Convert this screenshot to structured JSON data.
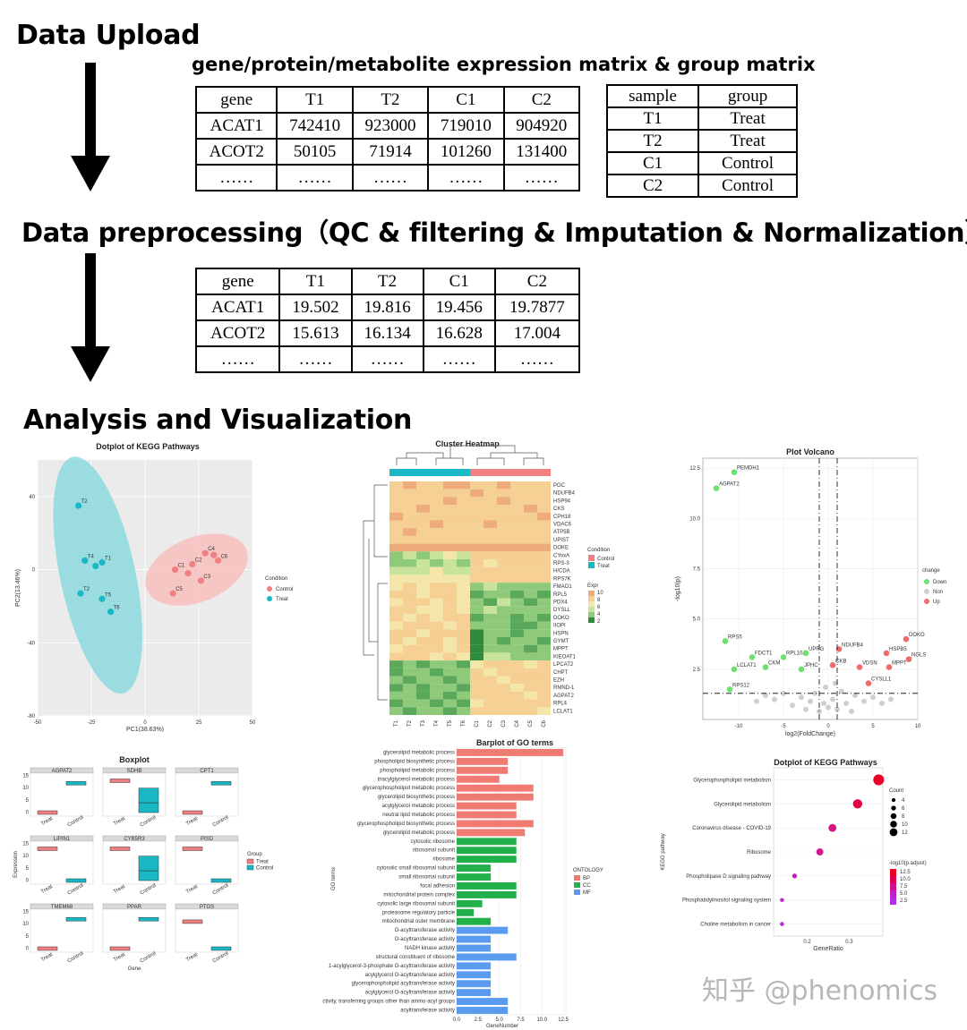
{
  "steps": {
    "upload": "Data Upload",
    "preprocessing": "Data preprocessing（QC & filtering & Imputation & Normalization）",
    "analysis": "Analysis and Visualization"
  },
  "upload_caption": "gene/protein/metabolite expression matrix & group matrix",
  "expression_matrix": {
    "header": [
      "gene",
      "T1",
      "T2",
      "C1",
      "C2"
    ],
    "rows": [
      [
        "ACAT1",
        "742410",
        "923000",
        "719010",
        "904920"
      ],
      [
        "ACOT2",
        "50105",
        "71914",
        "101260",
        "131400"
      ],
      [
        "……",
        "……",
        "……",
        "……",
        "……"
      ]
    ]
  },
  "group_matrix": {
    "header": [
      "sample",
      "group"
    ],
    "rows": [
      [
        "T1",
        "Treat"
      ],
      [
        "T2",
        "Treat"
      ],
      [
        "C1",
        "Control"
      ],
      [
        "C2",
        "Control"
      ]
    ]
  },
  "normalized_matrix": {
    "header": [
      "gene",
      "T1",
      "T2",
      "C1",
      "C2"
    ],
    "rows": [
      [
        "ACAT1",
        "19.502",
        "19.816",
        "19.456",
        "19.7877"
      ],
      [
        "ACOT2",
        "15.613",
        "16.134",
        "16.628",
        "17.004"
      ],
      [
        "……",
        "……",
        "……",
        "……",
        "……"
      ]
    ]
  },
  "chart_data": [
    {
      "type": "scatter",
      "title": "Dotplot of KEGG Pathways",
      "xlabel": "PC1(38.63%)",
      "ylabel": "PC2(13.46%)",
      "xlim": [
        -50,
        50
      ],
      "ylim": [
        -80,
        60
      ],
      "xticks": [
        "-50",
        "-25",
        "0",
        "25",
        "50"
      ],
      "yticks": [
        "40",
        "0",
        "-40",
        "-80"
      ],
      "legend_title": "Condition",
      "series": [
        {
          "name": "Control",
          "color": "#f08080",
          "points": [
            {
              "label": "C4",
              "x": 28,
              "y": 9
            },
            {
              "label": "C1",
              "x": 14,
              "y": 0
            },
            {
              "label": "C2",
              "x": 22,
              "y": 3
            },
            {
              "label": "C6",
              "x": 34,
              "y": 5
            },
            {
              "label": "C3",
              "x": 26,
              "y": -6
            },
            {
              "label": "C5",
              "x": 13,
              "y": -13
            },
            {
              "label": "",
              "x": 32,
              "y": 8
            },
            {
              "label": "",
              "x": 20,
              "y": -2
            }
          ]
        },
        {
          "name": "Treat",
          "color": "#1ab8c4",
          "points": [
            {
              "label": "T2",
              "x": -31,
              "y": 35
            },
            {
              "label": "T4",
              "x": -28,
              "y": 5
            },
            {
              "label": "T1",
              "x": -20,
              "y": 4
            },
            {
              "label": "T2",
              "x": -30,
              "y": -13
            },
            {
              "label": "T5",
              "x": -20,
              "y": -16
            },
            {
              "label": "T6",
              "x": -16,
              "y": -23
            },
            {
              "label": "",
              "x": -23,
              "y": 2
            }
          ]
        }
      ]
    },
    {
      "type": "heatmap",
      "title": "Cluster Heatmap",
      "columns": [
        "T1",
        "T2",
        "T3",
        "T4",
        "T5",
        "T6",
        "C1",
        "C2",
        "C3",
        "C4",
        "C5",
        "C6"
      ],
      "rows": [
        "PGC",
        "NDUFB4",
        "HSP94",
        "CKS",
        "CPH18",
        "VDAC6",
        "ATP5B",
        "UPIST",
        "DOKE",
        "CYoxA",
        "RPS-3",
        "H/CDA",
        "RPS7K",
        "FMAO1",
        "RPL5",
        "PDX4",
        "DYSLL",
        "DOKO",
        "IIOPI",
        "HSPN",
        "GYMT",
        "MPPT",
        "KIEOAT1",
        "LPCAT2",
        "CHPT",
        "EZH",
        "RMND-1",
        "AGPAT2",
        "RPL4",
        "LCLAT1"
      ],
      "values": [
        [
          6,
          7,
          6,
          6,
          7,
          7,
          6,
          6,
          7,
          6,
          6,
          6
        ],
        [
          6,
          6,
          6,
          6,
          6,
          6,
          7,
          6,
          6,
          6,
          6,
          6
        ],
        [
          6,
          6,
          6,
          6,
          7,
          6,
          6,
          6,
          7,
          6,
          6,
          6
        ],
        [
          6,
          6,
          7,
          6,
          6,
          6,
          6,
          6,
          6,
          6,
          7,
          6
        ],
        [
          7,
          6,
          6,
          6,
          6,
          6,
          6,
          6,
          6,
          6,
          6,
          7
        ],
        [
          6,
          6,
          6,
          7,
          6,
          6,
          6,
          7,
          6,
          6,
          6,
          6
        ],
        [
          6,
          7,
          6,
          6,
          6,
          6,
          6,
          6,
          6,
          6,
          6,
          6
        ],
        [
          6,
          6,
          6,
          6,
          6,
          6,
          6,
          6,
          6,
          6,
          6,
          6
        ],
        [
          7,
          7,
          7,
          7,
          7,
          7,
          7,
          7,
          7,
          7,
          7,
          7
        ],
        [
          3,
          4,
          3,
          4,
          5,
          4,
          6,
          6,
          6,
          6,
          6,
          6
        ],
        [
          3,
          3,
          4,
          3,
          4,
          3,
          6,
          5,
          6,
          6,
          6,
          6
        ],
        [
          4,
          4,
          4,
          5,
          4,
          4,
          6,
          6,
          6,
          6,
          6,
          6
        ],
        [
          5,
          5,
          5,
          5,
          5,
          5,
          6,
          6,
          6,
          6,
          6,
          6
        ],
        [
          5,
          6,
          5,
          6,
          6,
          5,
          3,
          4,
          3,
          3,
          3,
          3
        ],
        [
          6,
          6,
          5,
          6,
          6,
          5,
          2,
          3,
          3,
          2,
          3,
          2
        ],
        [
          5,
          6,
          6,
          5,
          6,
          5,
          3,
          2,
          4,
          3,
          2,
          3
        ],
        [
          6,
          6,
          5,
          5,
          6,
          5,
          3,
          4,
          3,
          3,
          3,
          3
        ],
        [
          6,
          5,
          6,
          5,
          6,
          6,
          2,
          3,
          3,
          2,
          3,
          2
        ],
        [
          5,
          6,
          6,
          6,
          5,
          6,
          3,
          3,
          3,
          2,
          2,
          3
        ],
        [
          6,
          6,
          5,
          6,
          6,
          6,
          1,
          3,
          3,
          2,
          3,
          3
        ],
        [
          6,
          5,
          6,
          6,
          5,
          6,
          1,
          3,
          2,
          3,
          3,
          2
        ],
        [
          5,
          6,
          6,
          6,
          5,
          6,
          1,
          3,
          3,
          3,
          2,
          3
        ],
        [
          6,
          6,
          6,
          5,
          6,
          5,
          1,
          4,
          4,
          3,
          3,
          3
        ],
        [
          2,
          3,
          2,
          3,
          3,
          2,
          5,
          6,
          6,
          6,
          5,
          6
        ],
        [
          2,
          3,
          3,
          2,
          3,
          3,
          6,
          5,
          6,
          6,
          6,
          6
        ],
        [
          3,
          2,
          3,
          3,
          2,
          3,
          6,
          6,
          5,
          6,
          6,
          6
        ],
        [
          2,
          3,
          2,
          3,
          3,
          2,
          6,
          6,
          6,
          5,
          6,
          6
        ],
        [
          3,
          3,
          2,
          3,
          2,
          3,
          6,
          6,
          6,
          6,
          5,
          6
        ],
        [
          2,
          3,
          3,
          2,
          3,
          2,
          5,
          6,
          6,
          6,
          6,
          6
        ],
        [
          3,
          2,
          3,
          3,
          2,
          3,
          6,
          6,
          6,
          6,
          6,
          5
        ]
      ],
      "legend_condition_title": "Condition",
      "legend_conditions": [
        "Control",
        "Treat"
      ],
      "legend_expr_title": "Expr",
      "legend_expr_ticks": [
        "10",
        "8",
        "6",
        "4",
        "2"
      ]
    },
    {
      "type": "scatter",
      "title": "Plot Volcano",
      "xlabel": "log2(FoldChange)",
      "ylabel": "-log10(p)",
      "xlim": [
        -14,
        10
      ],
      "ylim": [
        0,
        12.5
      ],
      "xticks": [
        "-10",
        "-5",
        "0",
        "5",
        "10"
      ],
      "yticks": [
        "12.5",
        "10.0",
        "7.5",
        "5.0",
        "2.5"
      ],
      "legend_title": "change",
      "legend": [
        "Down",
        "Non",
        "Up"
      ],
      "labels": [
        {
          "text": "PEMDH1",
          "x": -10.5,
          "y": 12.3,
          "group": "Down"
        },
        {
          "text": "AGPAT2",
          "x": -12.5,
          "y": 11.5,
          "group": "Down"
        },
        {
          "text": "RPS5",
          "x": -11.5,
          "y": 3.9,
          "group": "Down"
        },
        {
          "text": "FDCT1",
          "x": -8.5,
          "y": 3.1,
          "group": "Down"
        },
        {
          "text": "LCLAT1",
          "x": -10.5,
          "y": 2.5,
          "group": "Down"
        },
        {
          "text": "CKM",
          "x": -7.0,
          "y": 2.6,
          "group": "Down"
        },
        {
          "text": "RPL10A",
          "x": -5.0,
          "y": 3.1,
          "group": "Down"
        },
        {
          "text": "UPRG",
          "x": -2.5,
          "y": 3.3,
          "group": "Down"
        },
        {
          "text": "JPHC",
          "x": -3.0,
          "y": 2.5,
          "group": "Down"
        },
        {
          "text": "RPS12",
          "x": -11.0,
          "y": 1.5,
          "group": "Down"
        },
        {
          "text": "NDUFB4",
          "x": 1.2,
          "y": 3.5,
          "group": "Up"
        },
        {
          "text": "VDSN",
          "x": 3.5,
          "y": 2.6,
          "group": "Up"
        },
        {
          "text": "CKB",
          "x": 0.5,
          "y": 2.7,
          "group": "Up"
        },
        {
          "text": "DOKO",
          "x": 8.7,
          "y": 4.0,
          "group": "Up"
        },
        {
          "text": "HSPB5",
          "x": 6.5,
          "y": 3.3,
          "group": "Up"
        },
        {
          "text": "MPPT",
          "x": 6.8,
          "y": 2.6,
          "group": "Up"
        },
        {
          "text": "CYSLL1",
          "x": 4.5,
          "y": 1.8,
          "group": "Up"
        },
        {
          "text": "NGLS",
          "x": 9.0,
          "y": 3.0,
          "group": "Up"
        }
      ]
    },
    {
      "type": "box",
      "title": "Boxplot",
      "xlabel": "Gene",
      "ylabel": "Expression",
      "groups": [
        "Treat",
        "Control"
      ],
      "legend_title": "Group",
      "panels": [
        "AGPAT2",
        "SDHB",
        "CPT1",
        "LIPIN1",
        "CYB5R3",
        "PISD",
        "TMEM68",
        "PPAR",
        "PTGS"
      ],
      "treat_median": [
        0,
        13,
        0,
        13,
        13,
        13,
        0,
        0,
        11
      ],
      "control_median": [
        12,
        5,
        12,
        0,
        5,
        0,
        12,
        12,
        0
      ]
    },
    {
      "type": "bar",
      "title": "Barplot of GO terms",
      "xlabel": "GeneNumber",
      "ylabel": "GO terms",
      "xticks": [
        "0.0",
        "2.5",
        "5.0",
        "7.5",
        "10.0",
        "12.5"
      ],
      "legend_title": "ONTOLOGY",
      "legend": [
        "BP",
        "CC",
        "MF"
      ],
      "categories": [
        "glycerolipid metabolic process",
        "phospholipid biosynthetic process",
        "phospholipid metabolic process",
        "triacylglycerol metabolic process",
        "glycerophospholipid metabolic process",
        "glycerolipid biosynthetic process",
        "acylglycerol metabolic process",
        "neutral lipid metabolic process",
        "glycerophospholipid biosynthetic process",
        "glycerolipid metabolic process",
        "cytosolic ribosome",
        "ribosomal subunit",
        "ribosome",
        "cytosolic small ribosomal subunit",
        "small ribosomal subunit",
        "focal adhesion",
        "mitochondrial protein complex",
        "cytosolic large ribosomal subunit",
        "proteasome regulatory particle",
        "mitochondrial outer membrane",
        "O-acyltransferase activity",
        "O-acyltransferase activity",
        "NADH kinase activity",
        "structural constituent of ribosome",
        "1-acylglycerol-3-phosphate O-acyltransferase activity",
        "acylglycerol O-acyltransferase activity",
        "glycerophospholipid acyltransferase activity",
        "acylglycerol O-acyltransferase activity",
        "acyltransferase activity, transferring groups other than amino-acyl groups",
        "acyltransferase activity"
      ],
      "ontology": [
        "BP",
        "BP",
        "BP",
        "BP",
        "BP",
        "BP",
        "BP",
        "BP",
        "BP",
        "BP",
        "CC",
        "CC",
        "CC",
        "CC",
        "CC",
        "CC",
        "CC",
        "CC",
        "CC",
        "CC",
        "MF",
        "MF",
        "MF",
        "MF",
        "MF",
        "MF",
        "MF",
        "MF",
        "MF",
        "MF"
      ],
      "values": [
        12.5,
        6,
        6,
        5,
        9,
        9,
        7,
        7,
        9,
        8,
        7,
        7,
        7,
        4,
        4,
        7,
        7,
        3,
        2,
        4,
        6,
        4,
        4,
        7,
        4,
        4,
        4,
        4,
        6,
        6
      ]
    },
    {
      "type": "scatter",
      "title": "Dotplot of KEGG Pathways",
      "xlabel": "GeneRatio",
      "ylabel": "KEGG pathway",
      "xticks": [
        "0.2",
        "0.3"
      ],
      "xlim": [
        0.12,
        0.38
      ],
      "categories": [
        "Glycerophospholipid metabolism",
        "Glycerolipid metabolism",
        "Coronavirus disease - COVID-19",
        "Ribosome",
        "Phospholipase D signaling pathway",
        "Phosphatidylinositol signaling system",
        "Choline metabolism in cancer"
      ],
      "gene_ratio": [
        0.37,
        0.32,
        0.26,
        0.23,
        0.17,
        0.14,
        0.14
      ],
      "count": [
        12,
        10,
        8,
        7,
        4,
        3,
        3
      ],
      "neglog10_padj": [
        12.5,
        11,
        8,
        7,
        5,
        3.5,
        3
      ],
      "legend_count_title": "Count",
      "legend_count_ticks": [
        "4",
        "6",
        "8",
        "10",
        "12"
      ],
      "legend_color_title": "-log10(p.adjust)",
      "legend_color_ticks": [
        "12.5",
        "10.0",
        "7.5",
        "5.0",
        "2.5"
      ]
    }
  ],
  "watermark": "知乎 @phenomics"
}
